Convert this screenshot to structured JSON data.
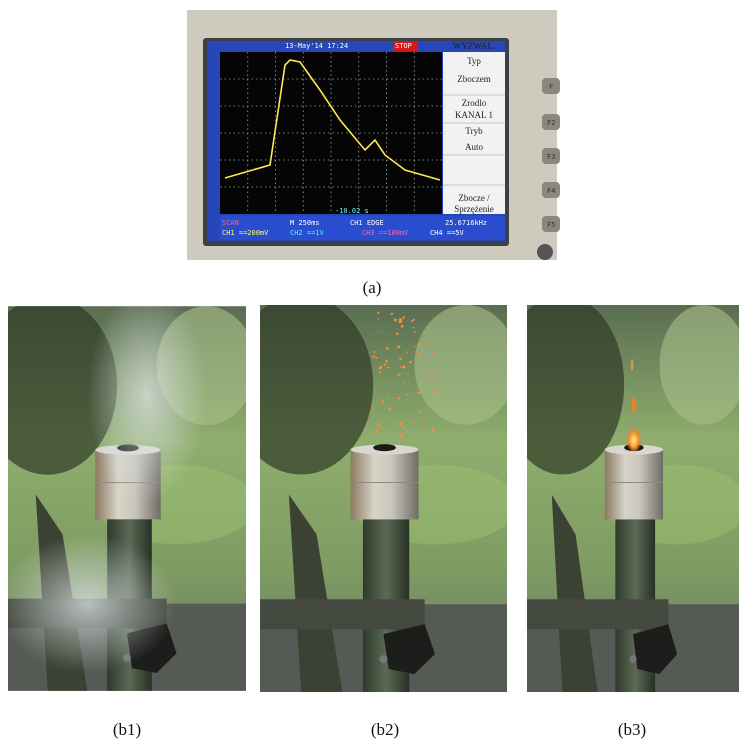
{
  "screen": {
    "datetime": "13-May'14 17:24",
    "status": "STOP",
    "menu_title": "WYZWAL.",
    "menu": [
      "Typ",
      "Zboczem",
      "Zrodlo",
      "KANAL 1",
      "Tryb",
      "Auto",
      "Zbocze /",
      "Sprzężenie"
    ],
    "cursor": "-10.02 s",
    "mode": "SCAN",
    "timebase": "M 250ms",
    "trigger": "CH1 EDGE",
    "frequency": "25.6716kHz",
    "channels": [
      "CH1 ==200mV",
      "CH2 ==1V",
      "CH3 ==100mV",
      "CH4 ==5V"
    ],
    "buttons": [
      "F",
      "F2",
      "F3",
      "F4",
      "F5"
    ]
  },
  "captions": {
    "a": "(a)",
    "b1": "(b1)",
    "b2": "(b2)",
    "b3": "(b3)"
  }
}
